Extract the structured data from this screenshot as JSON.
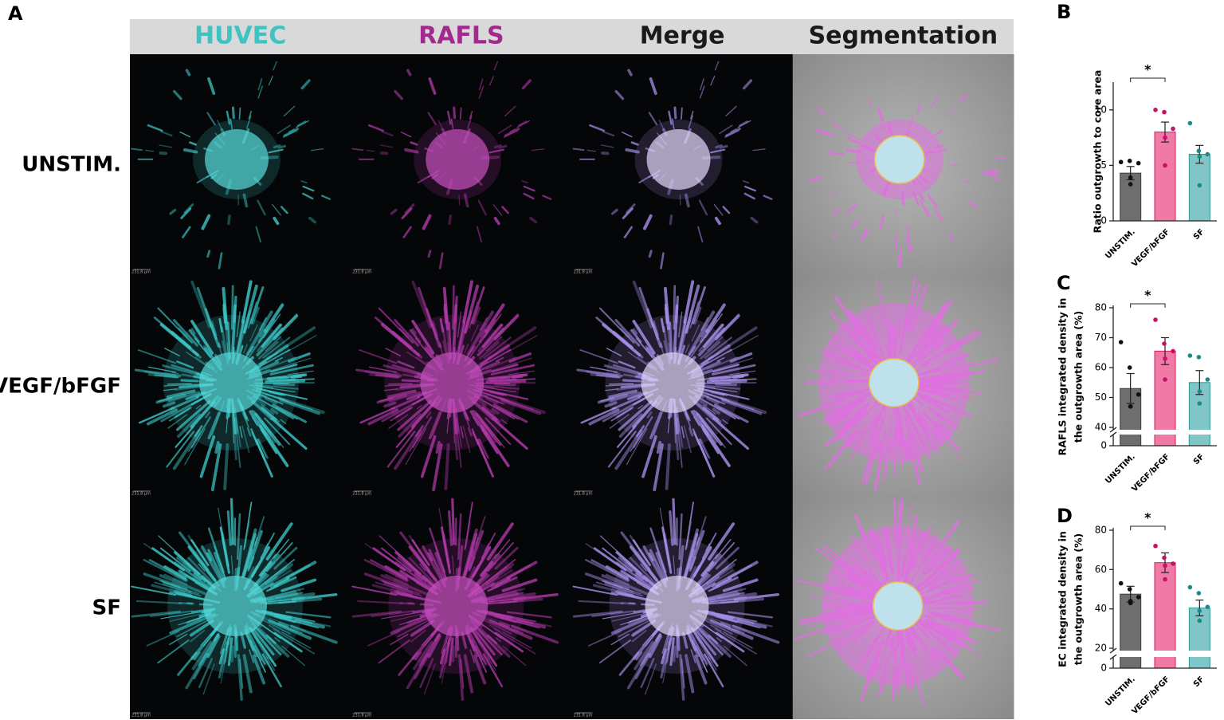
{
  "panel_labels": [
    "A",
    "B",
    "C",
    "D"
  ],
  "figure": {
    "columns": [
      "HUVEC",
      "RAFLS",
      "Merge",
      "Segmentation"
    ],
    "rows": [
      "UNSTIM.",
      "VEGF/bFGF",
      "SF"
    ],
    "scale_bar": "231.8 µm"
  },
  "chart_data": [
    {
      "type": "bar",
      "ylabel": [
        "Ratio outgrowth to core area"
      ],
      "categories": [
        "UNSTIM.",
        "VEGF/bFGF",
        "SF"
      ],
      "values": [
        4.3,
        8.0,
        6.0
      ],
      "errors": [
        0.6,
        0.9,
        0.8
      ],
      "points": [
        [
          5.3,
          5.4,
          5.2,
          3.9,
          3.3
        ],
        [
          10.0,
          9.8,
          8.3,
          7.5,
          5.0
        ],
        [
          8.8,
          6.3,
          6.0,
          5.8,
          3.2
        ]
      ],
      "colors": [
        "#6e6e6e",
        "#f07aa5",
        "#80c6c6"
      ],
      "ylim": [
        0,
        12.5
      ],
      "yticks": [
        0,
        5,
        10
      ],
      "annotation": "*"
    },
    {
      "type": "bar",
      "ylabel": [
        "RAFLS integrated density in",
        "the outgrowth area (%)"
      ],
      "categories": [
        "UNSTIM.",
        "VEGF/bFGF",
        "SF"
      ],
      "values": [
        53,
        65.5,
        55
      ],
      "errors": [
        5,
        4.5,
        4
      ],
      "points": [
        [
          68.5,
          60,
          51,
          47,
          47
        ],
        [
          76,
          68,
          65.5,
          63,
          56
        ],
        [
          64,
          63.5,
          56,
          52,
          48
        ]
      ],
      "colors": [
        "#6e6e6e",
        "#f07aa5",
        "#80c6c6"
      ],
      "ylim": [
        0,
        80
      ],
      "axis_break": [
        0,
        40
      ],
      "yticks": [
        0,
        40,
        50,
        60,
        70,
        80
      ],
      "annotation": "*"
    },
    {
      "type": "bar",
      "ylabel": [
        "EC integrated density in",
        "the outgrowth area (%)"
      ],
      "categories": [
        "UNSTIM.",
        "VEGF/bFGF",
        "SF"
      ],
      "values": [
        47.5,
        63.5,
        40.5
      ],
      "errors": [
        4,
        5,
        4
      ],
      "points": [
        [
          53,
          50,
          46,
          44,
          43
        ],
        [
          72,
          66,
          63,
          62,
          55
        ],
        [
          51,
          48,
          41,
          39,
          34
        ]
      ],
      "colors": [
        "#6e6e6e",
        "#f07aa5",
        "#80c6c6"
      ],
      "ylim": [
        0,
        80
      ],
      "axis_break": [
        0,
        20
      ],
      "yticks": [
        0,
        20,
        40,
        60,
        80
      ],
      "annotation": "*"
    }
  ]
}
